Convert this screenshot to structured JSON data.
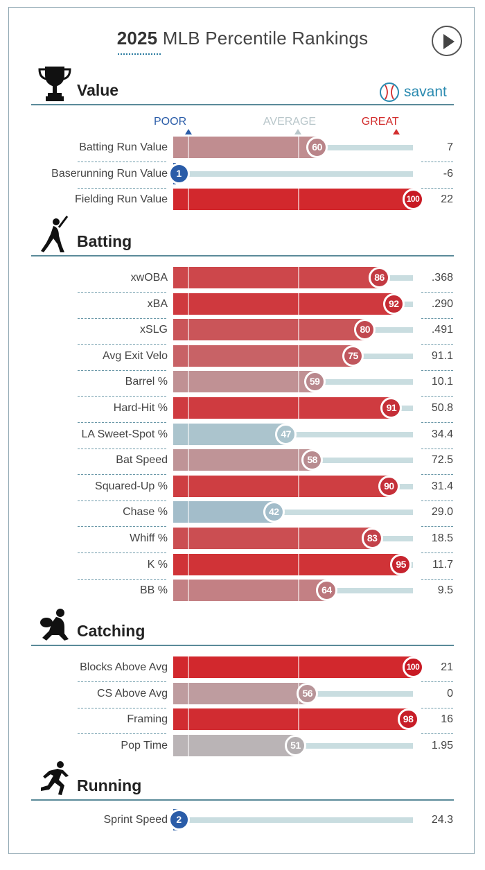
{
  "title": {
    "year": "2025",
    "rest": " MLB Percentile Rankings"
  },
  "savant_text": "savant",
  "scale": {
    "poor": "POOR",
    "average": "AVERAGE",
    "great": "GREAT"
  },
  "colors": {
    "poor": "#2a5ca8",
    "average": "#b8c6ca",
    "great": "#d22d2d",
    "rule": "#5a8a99"
  },
  "chart_data": {
    "type": "bar",
    "title": "2025 MLB Percentile Rankings",
    "xlim": [
      0,
      100
    ],
    "sections": [
      {
        "name": "Value",
        "icon": "trophy-icon",
        "metrics": [
          {
            "label": "Batting Run Value",
            "percentile": 60,
            "value": "7"
          },
          {
            "label": "Baserunning Run Value",
            "percentile": 1,
            "value": "-6"
          },
          {
            "label": "Fielding Run Value",
            "percentile": 100,
            "value": "22"
          }
        ]
      },
      {
        "name": "Batting",
        "icon": "batter-icon",
        "metrics": [
          {
            "label": "xwOBA",
            "percentile": 86,
            "value": ".368"
          },
          {
            "label": "xBA",
            "percentile": 92,
            "value": ".290"
          },
          {
            "label": "xSLG",
            "percentile": 80,
            "value": ".491"
          },
          {
            "label": "Avg Exit Velo",
            "percentile": 75,
            "value": "91.1"
          },
          {
            "label": "Barrel %",
            "percentile": 59,
            "value": "10.1"
          },
          {
            "label": "Hard-Hit %",
            "percentile": 91,
            "value": "50.8"
          },
          {
            "label": "LA Sweet-Spot %",
            "percentile": 47,
            "value": "34.4"
          },
          {
            "label": "Bat Speed",
            "percentile": 58,
            "value": "72.5"
          },
          {
            "label": "Squared-Up %",
            "percentile": 90,
            "value": "31.4"
          },
          {
            "label": "Chase %",
            "percentile": 42,
            "value": "29.0"
          },
          {
            "label": "Whiff %",
            "percentile": 83,
            "value": "18.5"
          },
          {
            "label": "K %",
            "percentile": 95,
            "value": "11.7"
          },
          {
            "label": "BB %",
            "percentile": 64,
            "value": "9.5"
          }
        ]
      },
      {
        "name": "Catching",
        "icon": "catcher-icon",
        "metrics": [
          {
            "label": "Blocks Above Avg",
            "percentile": 100,
            "value": "21"
          },
          {
            "label": "CS Above Avg",
            "percentile": 56,
            "value": "0"
          },
          {
            "label": "Framing",
            "percentile": 98,
            "value": "16"
          },
          {
            "label": "Pop Time",
            "percentile": 51,
            "value": "1.95"
          }
        ]
      },
      {
        "name": "Running",
        "icon": "runner-icon",
        "metrics": [
          {
            "label": "Sprint Speed",
            "percentile": 2,
            "value": "24.3"
          }
        ]
      }
    ]
  }
}
